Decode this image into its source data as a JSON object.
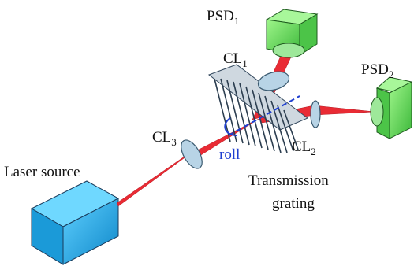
{
  "labels": {
    "psd1": {
      "main": "PSD",
      "sub": "1"
    },
    "psd2": {
      "main": "PSD",
      "sub": "2"
    },
    "cl1": {
      "main": "CL",
      "sub": "1"
    },
    "cl2": {
      "main": "CL",
      "sub": "2"
    },
    "cl3": {
      "main": "CL",
      "sub": "3"
    },
    "roll": "roll",
    "laser": "Laser source",
    "grating": [
      "Transmission",
      "grating"
    ]
  }
}
